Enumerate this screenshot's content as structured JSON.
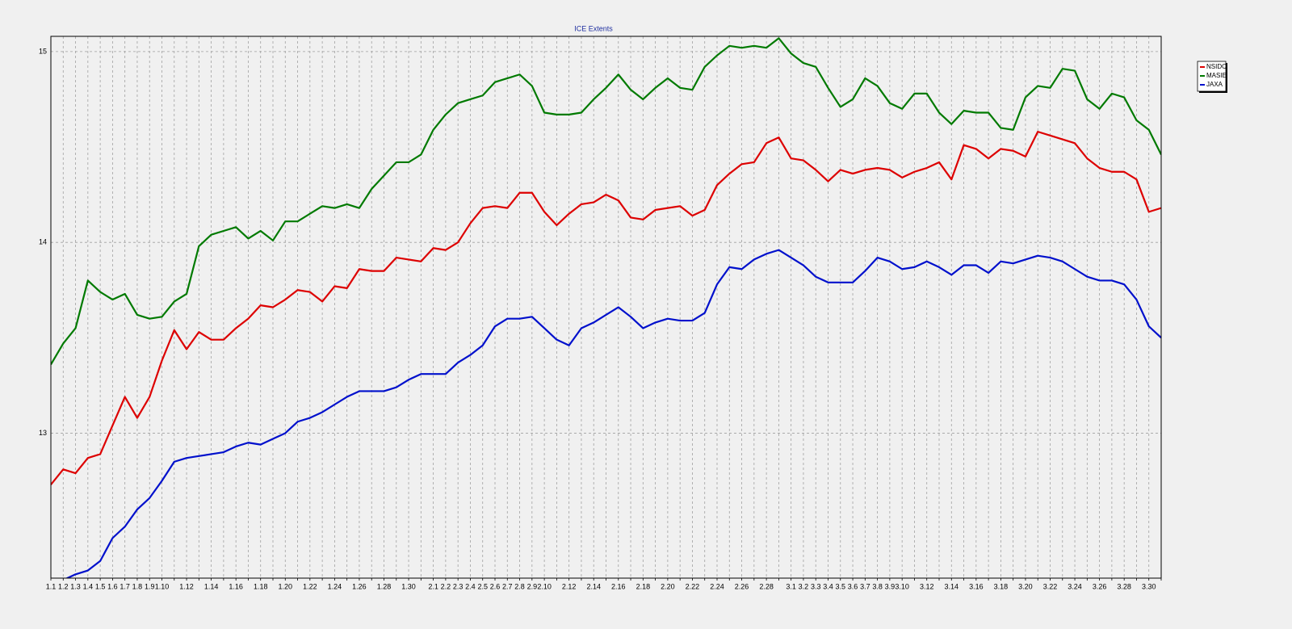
{
  "chart_data": {
    "type": "line",
    "title": "ICE Extents",
    "categories": [
      "1.1",
      "1.2",
      "1.3",
      "1.4",
      "1.5",
      "1.6",
      "1.7",
      "1.8",
      "1.9",
      "1.10",
      null,
      "1.12",
      null,
      "1.14",
      null,
      "1.16",
      null,
      "1.18",
      null,
      "1.20",
      null,
      "1.22",
      null,
      "1.24",
      null,
      "1.26",
      null,
      "1.28",
      null,
      "1.30",
      null,
      "2.1",
      "2.2",
      "2.3",
      "2.4",
      "2.5",
      "2.6",
      "2.7",
      "2.8",
      "2.9",
      "2.10",
      null,
      "2.12",
      null,
      "2.14",
      null,
      "2.16",
      null,
      "2.18",
      null,
      "2.20",
      null,
      "2.22",
      null,
      "2.24",
      null,
      "2.26",
      null,
      "2.28",
      null,
      "3.1",
      "3.2",
      "3.3",
      "3.4",
      "3.5",
      "3.6",
      "3.7",
      "3.8",
      "3.9",
      "3.10",
      null,
      "3.12",
      null,
      "3.14",
      null,
      "3.16",
      null,
      "3.18",
      null,
      "3.20",
      null,
      "3.22",
      null,
      "3.24",
      null,
      "3.26",
      null,
      "3.28",
      null,
      "3.30",
      null
    ],
    "series": [
      {
        "name": "NSIDC",
        "color": "#dd0000",
        "values": [
          12.73,
          12.81,
          12.79,
          12.87,
          12.89,
          13.04,
          13.19,
          13.08,
          13.19,
          13.38,
          13.54,
          13.44,
          13.53,
          13.49,
          13.49,
          13.55,
          13.6,
          13.67,
          13.66,
          13.7,
          13.75,
          13.74,
          13.69,
          13.77,
          13.76,
          13.86,
          13.85,
          13.85,
          13.92,
          13.91,
          13.9,
          13.97,
          13.96,
          14.0,
          14.1,
          14.18,
          14.19,
          14.18,
          14.26,
          14.26,
          14.16,
          14.09,
          14.15,
          14.2,
          14.21,
          14.25,
          14.22,
          14.13,
          14.12,
          14.17,
          14.18,
          14.19,
          14.14,
          14.17,
          14.3,
          14.36,
          14.41,
          14.42,
          14.52,
          14.55,
          14.44,
          14.43,
          14.38,
          14.32,
          14.38,
          14.36,
          14.38,
          14.39,
          14.38,
          14.34,
          14.37,
          14.39,
          14.42,
          14.33,
          14.51,
          14.49,
          14.44,
          14.49,
          14.48,
          14.45,
          14.58,
          14.56,
          14.54,
          14.52,
          14.44,
          14.39,
          14.37,
          14.37,
          14.33,
          14.16,
          14.18
        ]
      },
      {
        "name": "MASIE",
        "color": "#007a00",
        "values": [
          13.36,
          13.47,
          13.55,
          13.8,
          13.74,
          13.7,
          13.73,
          13.62,
          13.6,
          13.61,
          13.69,
          13.73,
          13.98,
          14.04,
          14.06,
          14.08,
          14.02,
          14.06,
          14.01,
          14.11,
          14.11,
          14.15,
          14.19,
          14.18,
          14.2,
          14.18,
          14.28,
          14.35,
          14.42,
          14.42,
          14.46,
          14.59,
          14.67,
          14.73,
          14.75,
          14.77,
          14.84,
          14.86,
          14.88,
          14.82,
          14.68,
          14.67,
          14.67,
          14.68,
          14.75,
          14.81,
          14.88,
          14.8,
          14.75,
          14.81,
          14.86,
          14.81,
          14.8,
          14.92,
          14.98,
          15.03,
          15.02,
          15.03,
          15.02,
          15.07,
          14.99,
          14.94,
          14.92,
          14.81,
          14.71,
          14.75,
          14.86,
          14.82,
          14.73,
          14.7,
          14.78,
          14.78,
          14.68,
          14.62,
          14.69,
          14.68,
          14.68,
          14.6,
          14.59,
          14.76,
          14.82,
          14.81,
          14.91,
          14.9,
          14.75,
          14.7,
          14.78,
          14.76,
          14.64,
          14.59,
          14.46
        ]
      },
      {
        "name": "JAXA",
        "color": "#0010cc",
        "values": [
          12.22,
          12.23,
          12.26,
          12.28,
          12.33,
          12.45,
          12.51,
          12.6,
          12.66,
          12.75,
          12.85,
          12.87,
          12.88,
          12.89,
          12.9,
          12.93,
          12.95,
          12.94,
          12.97,
          13.0,
          13.06,
          13.08,
          13.11,
          13.15,
          13.19,
          13.22,
          13.22,
          13.22,
          13.24,
          13.28,
          13.31,
          13.31,
          13.31,
          13.37,
          13.41,
          13.46,
          13.56,
          13.6,
          13.6,
          13.61,
          13.55,
          13.49,
          13.46,
          13.55,
          13.58,
          13.62,
          13.66,
          13.61,
          13.55,
          13.58,
          13.6,
          13.59,
          13.59,
          13.63,
          13.78,
          13.87,
          13.86,
          13.91,
          13.94,
          13.96,
          13.92,
          13.88,
          13.82,
          13.79,
          13.79,
          13.79,
          13.85,
          13.92,
          13.9,
          13.86,
          13.87,
          13.9,
          13.87,
          13.83,
          13.88,
          13.88,
          13.84,
          13.9,
          13.89,
          13.91,
          13.93,
          13.92,
          13.9,
          13.86,
          13.82,
          13.8,
          13.8,
          13.78,
          13.7,
          13.56,
          13.5
        ]
      }
    ],
    "ylim": [
      12.24,
      15.08
    ],
    "yticks": [
      13,
      14,
      15
    ],
    "grid": true,
    "legend": "upper right"
  }
}
